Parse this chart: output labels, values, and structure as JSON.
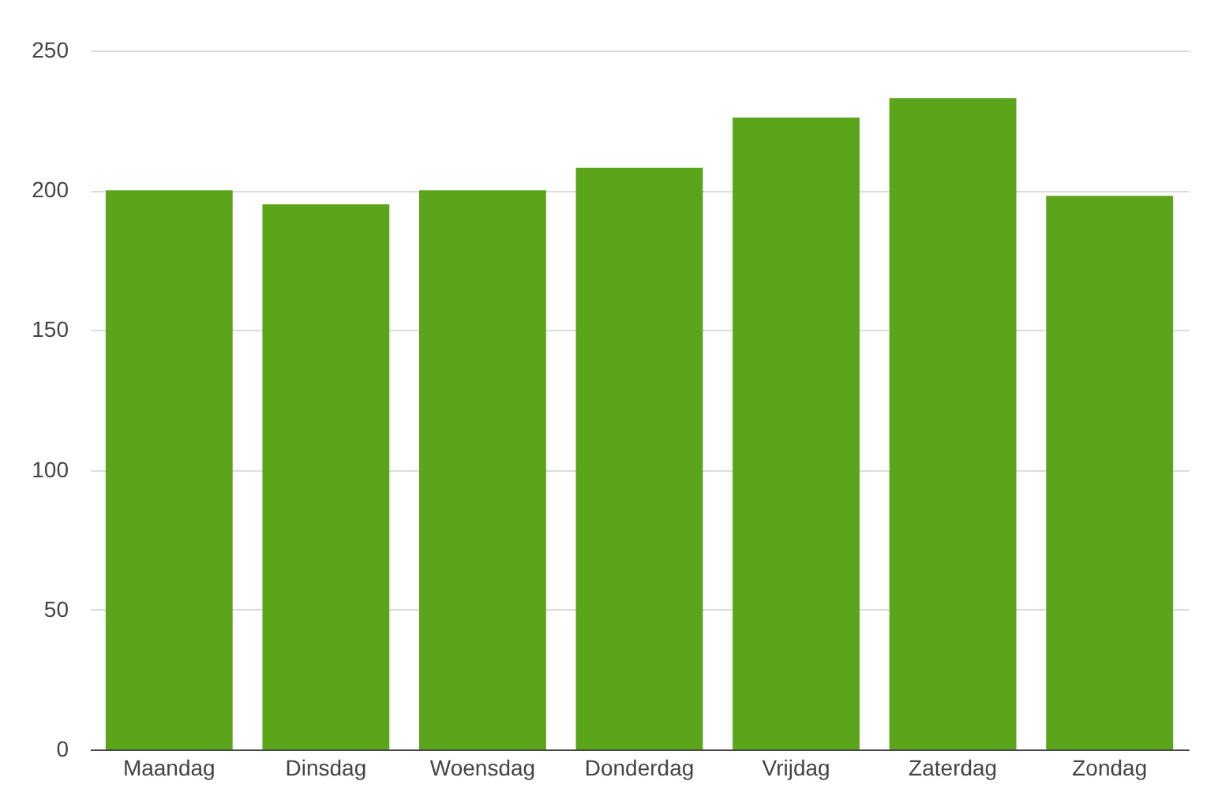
{
  "chart_data": {
    "type": "bar",
    "categories": [
      "Maandag",
      "Dinsdag",
      "Woensdag",
      "Donderdag",
      "Vrijdag",
      "Zaterdag",
      "Zondag"
    ],
    "values": [
      200,
      195,
      200,
      208,
      226,
      233,
      198
    ],
    "color": "#5aa519",
    "ylim": [
      0,
      250
    ],
    "yticks": [
      0,
      50,
      100,
      150,
      200,
      250
    ],
    "grid": "y"
  }
}
